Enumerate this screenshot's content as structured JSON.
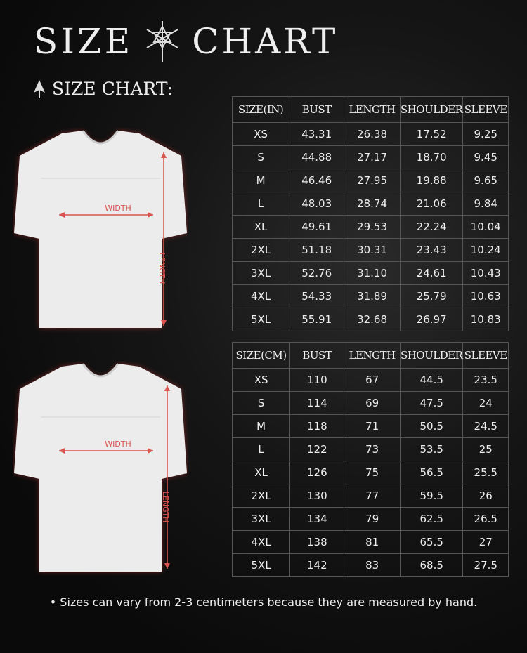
{
  "title": {
    "left": "SIZE",
    "right": "CHART"
  },
  "subtitle": "SIZE CHART:",
  "diagram": {
    "width_label": "WIDTH",
    "length_label": "LENGTH",
    "measure_color": "#d9534f"
  },
  "inch_table": {
    "headers": [
      "SIZE(IN)",
      "BUST",
      "LENGTH",
      "SHOULDER",
      "SLEEVE"
    ],
    "rows": [
      [
        "XS",
        "43.31",
        "26.38",
        "17.52",
        "9.25"
      ],
      [
        "S",
        "44.88",
        "27.17",
        "18.70",
        "9.45"
      ],
      [
        "M",
        "46.46",
        "27.95",
        "19.88",
        "9.65"
      ],
      [
        "L",
        "48.03",
        "28.74",
        "21.06",
        "9.84"
      ],
      [
        "XL",
        "49.61",
        "29.53",
        "22.24",
        "10.04"
      ],
      [
        "2XL",
        "51.18",
        "30.31",
        "23.43",
        "10.24"
      ],
      [
        "3XL",
        "52.76",
        "31.10",
        "24.61",
        "10.43"
      ],
      [
        "4XL",
        "54.33",
        "31.89",
        "25.79",
        "10.63"
      ],
      [
        "5XL",
        "55.91",
        "32.68",
        "26.97",
        "10.83"
      ]
    ]
  },
  "cm_table": {
    "headers": [
      "SIZE(CM)",
      "BUST",
      "LENGTH",
      "SHOULDER",
      "SLEEVE"
    ],
    "rows": [
      [
        "XS",
        "110",
        "67",
        "44.5",
        "23.5"
      ],
      [
        "S",
        "114",
        "69",
        "47.5",
        "24"
      ],
      [
        "M",
        "118",
        "71",
        "50.5",
        "24.5"
      ],
      [
        "L",
        "122",
        "73",
        "53.5",
        "25"
      ],
      [
        "XL",
        "126",
        "75",
        "56.5",
        "25.5"
      ],
      [
        "2XL",
        "130",
        "77",
        "59.5",
        "26"
      ],
      [
        "3XL",
        "134",
        "79",
        "62.5",
        "26.5"
      ],
      [
        "4XL",
        "138",
        "81",
        "65.5",
        "27"
      ],
      [
        "5XL",
        "142",
        "83",
        "68.5",
        "27.5"
      ]
    ]
  },
  "note": "Sizes can vary from 2-3 centimeters because they are measured by hand.",
  "border_color": "#8a3a3a"
}
